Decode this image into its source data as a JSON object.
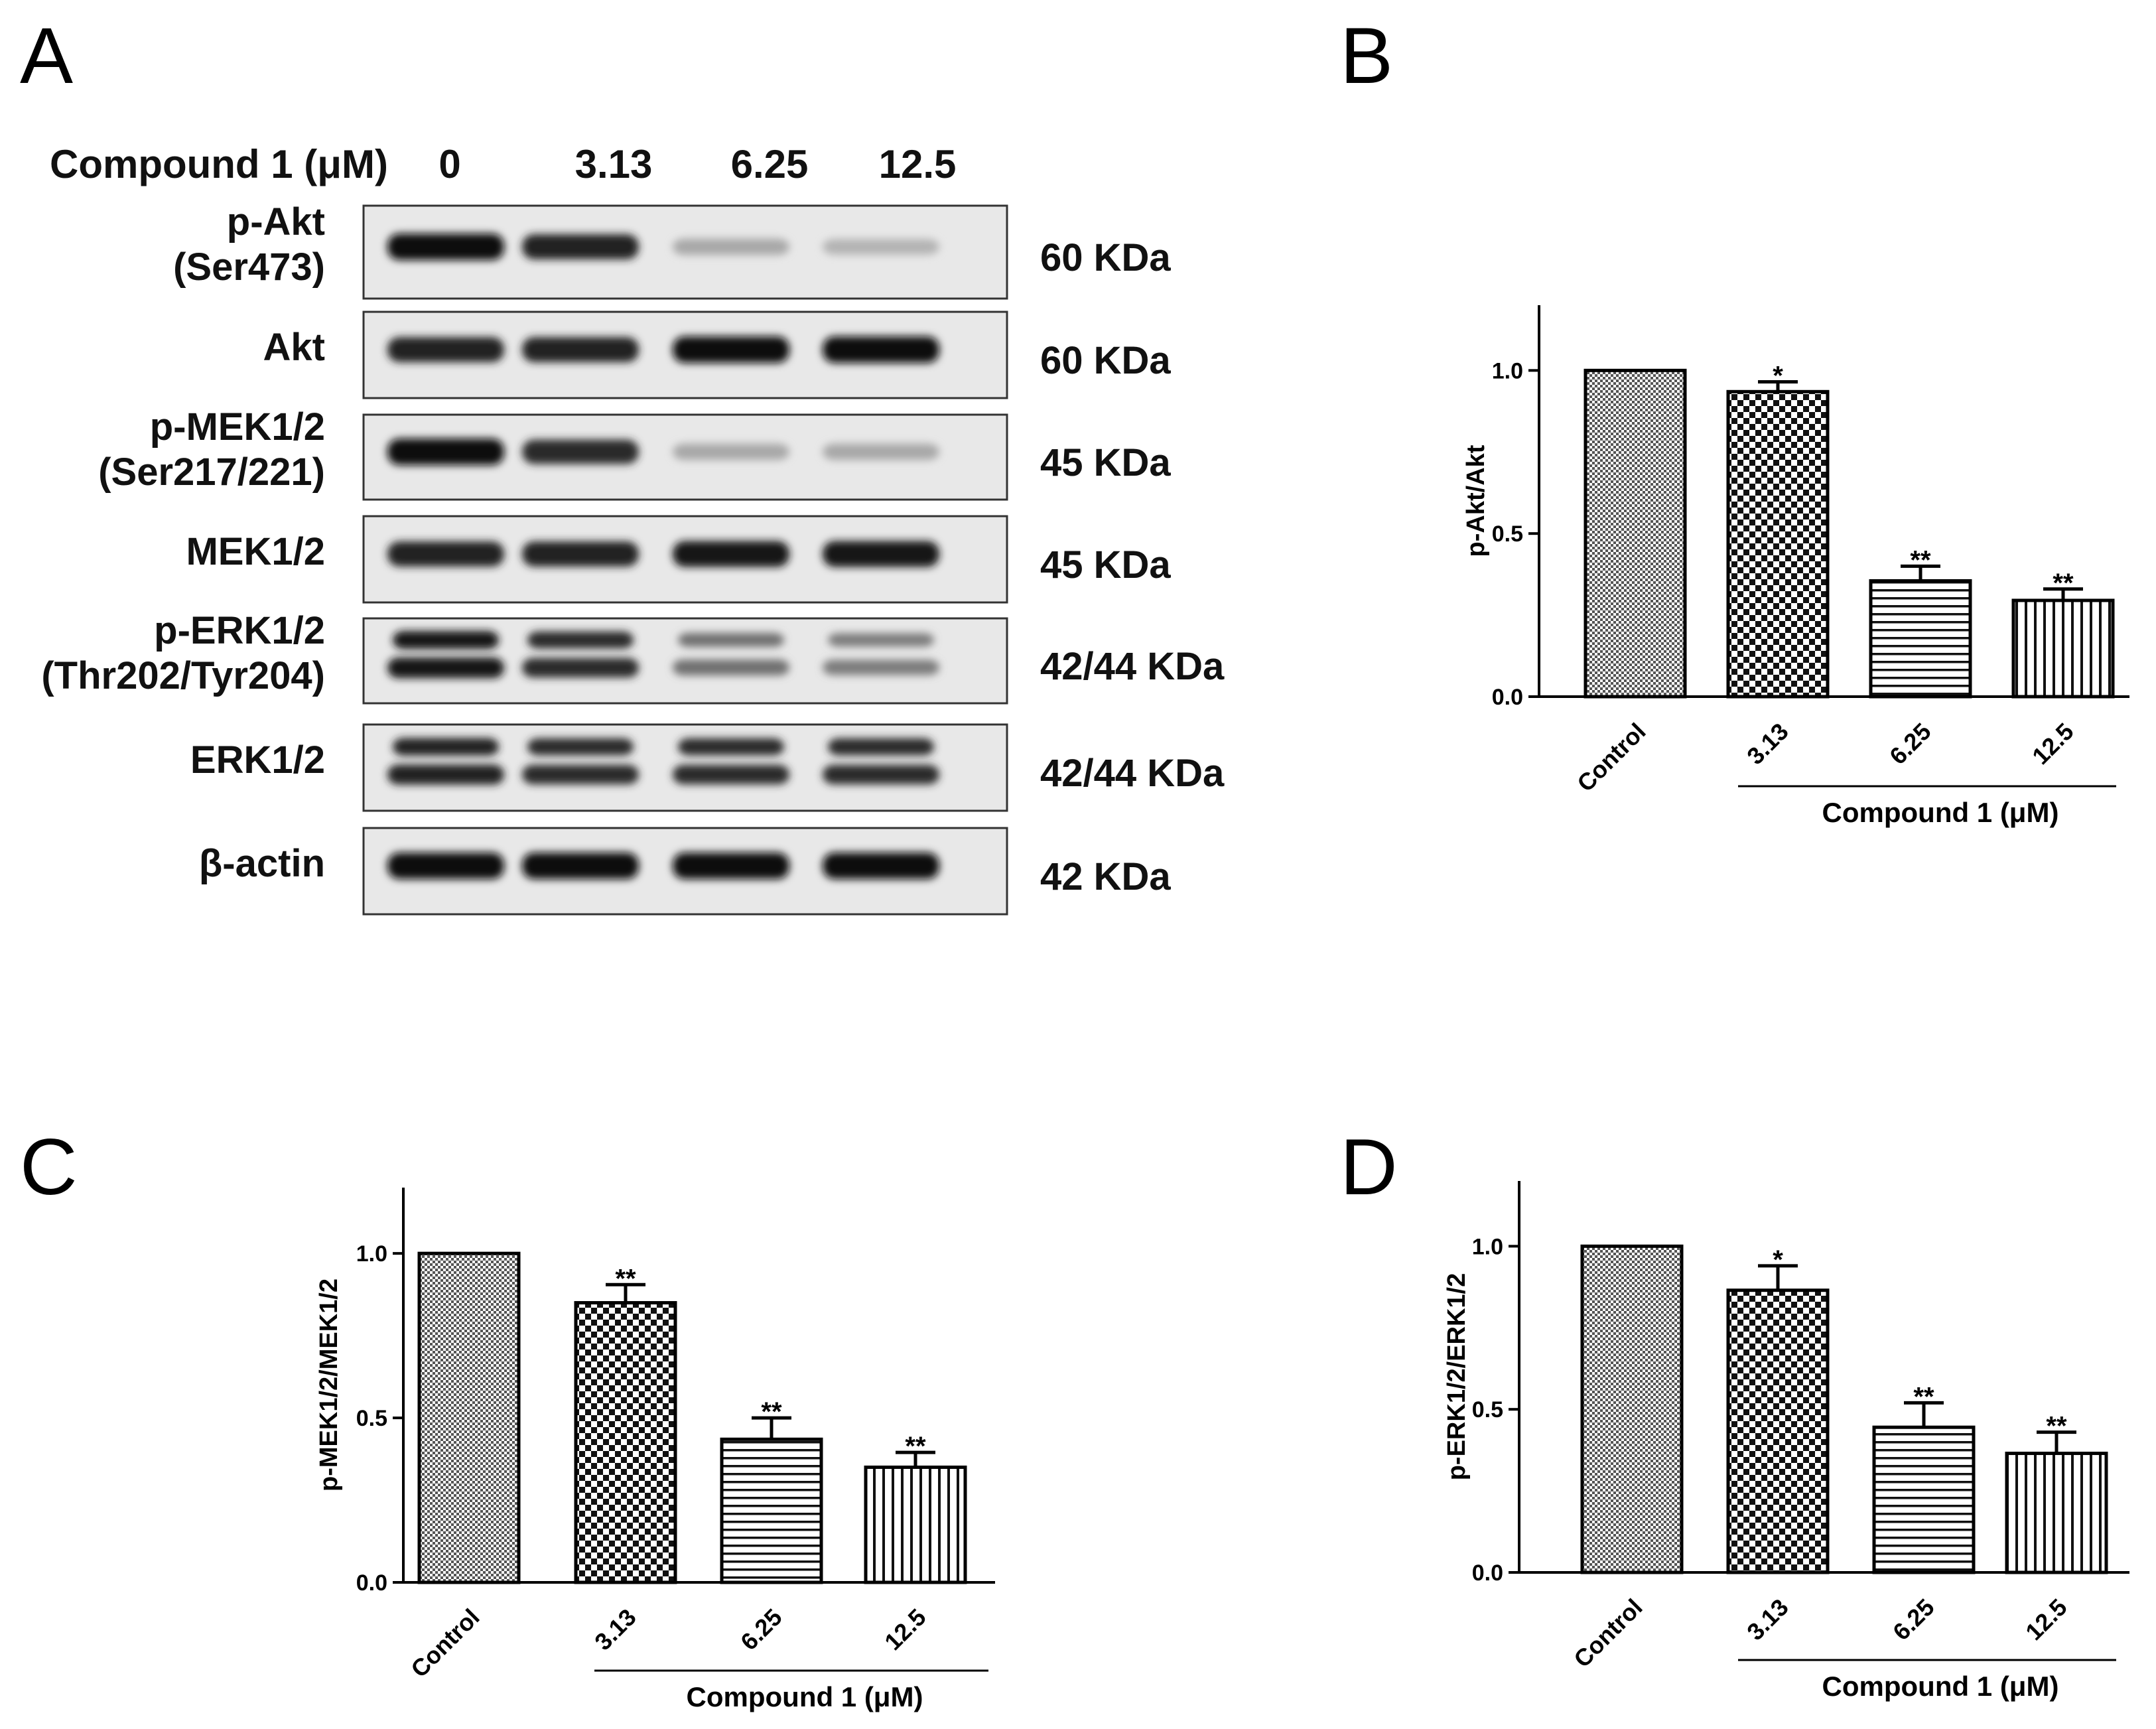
{
  "panels": [
    "A",
    "B",
    "C",
    "D"
  ],
  "blot": {
    "header_label": "Compound 1 (μM)",
    "concentrations": [
      "0",
      "3.13",
      "6.25",
      "12.5"
    ],
    "rows": [
      {
        "label_lines": [
          "p-Akt",
          "(Ser473)"
        ],
        "kda": "60 KDa",
        "intensity": [
          1.0,
          0.9,
          0.3,
          0.25
        ],
        "double": false
      },
      {
        "label_lines": [
          "Akt"
        ],
        "kda": "60 KDa",
        "intensity": [
          0.9,
          0.9,
          1.0,
          1.0
        ],
        "double": false
      },
      {
        "label_lines": [
          "p-MEK1/2",
          "(Ser217/221)"
        ],
        "kda": "45 KDa",
        "intensity": [
          1.0,
          0.85,
          0.3,
          0.3
        ],
        "double": false
      },
      {
        "label_lines": [
          "MEK1/2"
        ],
        "kda": "45 KDa",
        "intensity": [
          0.9,
          0.9,
          0.95,
          0.95
        ],
        "double": false
      },
      {
        "label_lines": [
          "p-ERK1/2",
          "(Thr202/Tyr204)"
        ],
        "kda": "42/44 KDa",
        "intensity": [
          0.95,
          0.85,
          0.55,
          0.5
        ],
        "double": true
      },
      {
        "label_lines": [
          "ERK1/2"
        ],
        "kda": "42/44 KDa",
        "intensity": [
          0.9,
          0.85,
          0.85,
          0.85
        ],
        "double": true
      },
      {
        "label_lines": [
          "β-actin"
        ],
        "kda": "42 KDa",
        "intensity": [
          1.0,
          1.0,
          1.0,
          1.0
        ],
        "double": false
      }
    ]
  },
  "chart_data": [
    {
      "panel": "B",
      "type": "bar",
      "categories": [
        "Control",
        "3.13",
        "6.25",
        "12.5"
      ],
      "values": [
        1.0,
        0.935,
        0.355,
        0.295
      ],
      "errors": [
        0,
        0.03,
        0.045,
        0.035
      ],
      "significance": [
        "",
        "*",
        "**",
        "**"
      ],
      "ylabel": "p-Akt/Akt",
      "group_label": "Compound 1 (μM)",
      "yticks": [
        "0.0",
        "0.5",
        "1.0"
      ],
      "ylim": [
        0,
        1.2
      ]
    },
    {
      "panel": "C",
      "type": "bar",
      "categories": [
        "Control",
        "3.13",
        "6.25",
        "12.5"
      ],
      "values": [
        1.0,
        0.85,
        0.435,
        0.35
      ],
      "errors": [
        0,
        0.055,
        0.065,
        0.045
      ],
      "significance": [
        "",
        "**",
        "**",
        "**"
      ],
      "ylabel": "p-MEK1/2/MEK1/2",
      "group_label": "Compound 1 (μM)",
      "yticks": [
        "0.0",
        "0.5",
        "1.0"
      ],
      "ylim": [
        0,
        1.2
      ]
    },
    {
      "panel": "D",
      "type": "bar",
      "categories": [
        "Control",
        "3.13",
        "6.25",
        "12.5"
      ],
      "values": [
        1.0,
        0.865,
        0.445,
        0.365
      ],
      "errors": [
        0,
        0.075,
        0.075,
        0.065
      ],
      "significance": [
        "",
        "*",
        "**",
        "**"
      ],
      "ylabel": "p-ERK1/2/ERK1/2",
      "group_label": "Compound 1 (μM)",
      "yticks": [
        "0.0",
        "0.5",
        "1.0"
      ],
      "ylim": [
        0,
        1.2
      ]
    }
  ]
}
